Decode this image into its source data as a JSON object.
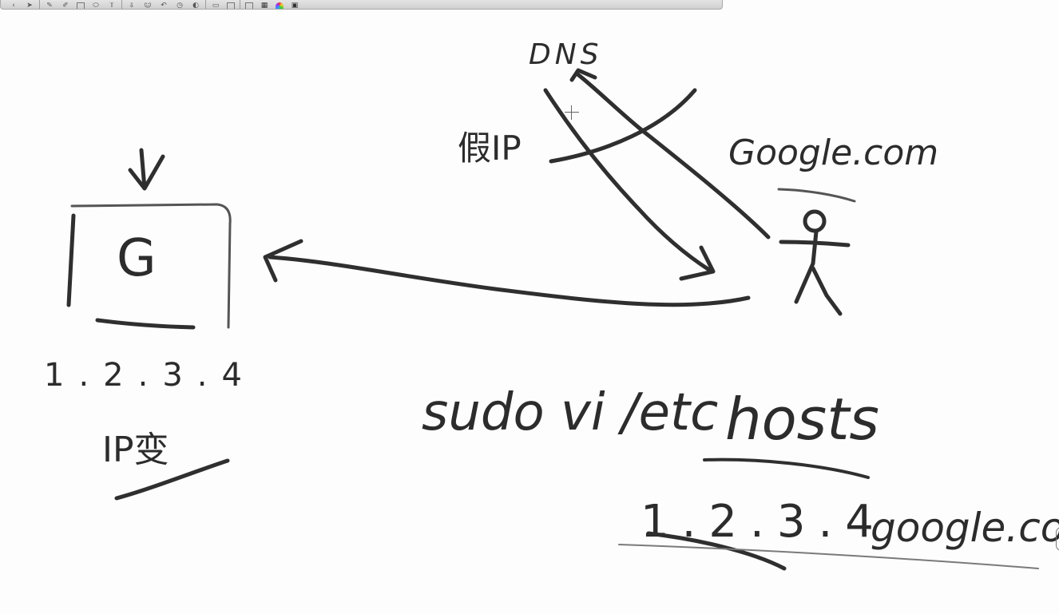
{
  "toolbar": {
    "icons": [
      "chevron-left-icon",
      "pointer-icon",
      "pen-icon",
      "highlighter-icon",
      "image-icon",
      "shape-icon",
      "text-icon",
      "arrow-down-icon",
      "smiley-icon",
      "undo-icon",
      "clock-icon",
      "color-icon",
      "copy-icon",
      "clipboard-icon",
      "trash-icon",
      "color-wheel-icon",
      "settings-icon"
    ]
  },
  "diagram": {
    "dns_label": "DNS",
    "fake_ip_label": "假IP",
    "domain_label": "Google.com",
    "server_letter": "G",
    "server_ip": "1.2.3.4",
    "server_note": "IP变",
    "command_prefix": "sudo vi /etc",
    "command_file": "hosts",
    "hosts_ip": "1.2.3.4",
    "hosts_domain": "google.com"
  },
  "colors": {
    "ink": "#2f2f2f",
    "background": "#fdfdfd"
  }
}
